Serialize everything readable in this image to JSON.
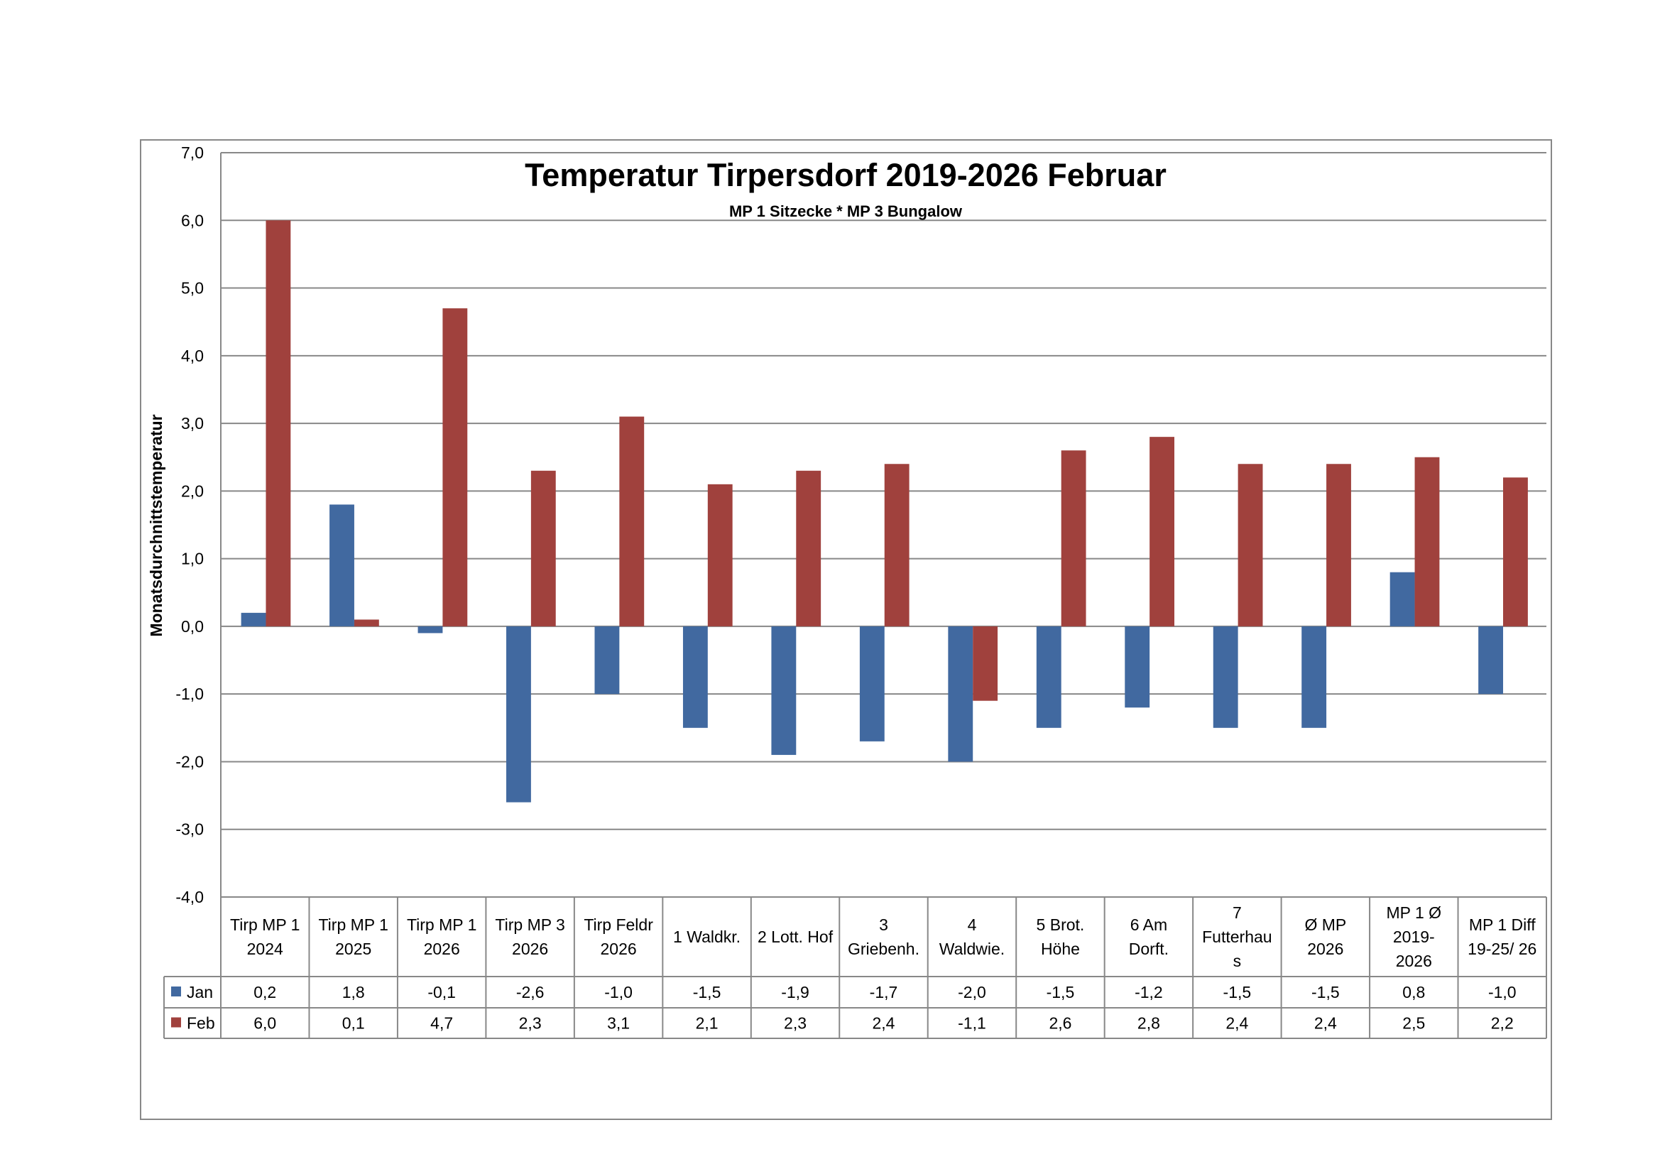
{
  "chart_data": {
    "type": "bar",
    "title": "Temperatur Tirpersdorf 2019-2026 Februar",
    "subtitle": "MP 1 Sitzecke * MP 3 Bungalow",
    "ylabel": "Monatsdurchnittstemperatur",
    "xlabel": "",
    "ylim": [
      -4,
      7
    ],
    "yticks": [
      "7,0",
      "6,0",
      "5,0",
      "4,0",
      "3,0",
      "2,0",
      "1,0",
      "0,0",
      "-1,0",
      "-2,0",
      "-3,0",
      "-4,0"
    ],
    "grid": true,
    "legend_placement": "data-table",
    "categories": [
      [
        "Tirp MP 1",
        "2024"
      ],
      [
        "Tirp MP 1",
        "2025"
      ],
      [
        "Tirp MP 1",
        "2026"
      ],
      [
        "Tirp MP 3",
        "2026"
      ],
      [
        "Tirp Feldr",
        "2026"
      ],
      [
        "1 Waldkr."
      ],
      [
        "2 Lott. Hof"
      ],
      [
        "3",
        "Griebenh."
      ],
      [
        "4",
        "Waldwie."
      ],
      [
        "5 Brot.",
        "Höhe"
      ],
      [
        "6 Am",
        "Dorft."
      ],
      [
        "7",
        "Futterhau",
        "s"
      ],
      [
        "Ø MP",
        "2026"
      ],
      [
        "MP 1 Ø",
        "2019-",
        "2026"
      ],
      [
        "MP 1 Diff",
        "19-25/ 26"
      ]
    ],
    "series": [
      {
        "name": "Jan",
        "color": "#4169A0",
        "values": [
          0.2,
          1.8,
          -0.1,
          -2.6,
          -1.0,
          -1.5,
          -1.9,
          -1.7,
          -2.0,
          -1.5,
          -1.2,
          -1.5,
          -1.5,
          0.8,
          -1.0
        ],
        "labels": [
          "0,2",
          "1,8",
          "-0,1",
          "-2,6",
          "-1,0",
          "-1,5",
          "-1,9",
          "-1,7",
          "-2,0",
          "-1,5",
          "-1,2",
          "-1,5",
          "-1,5",
          "0,8",
          "-1,0"
        ]
      },
      {
        "name": "Feb",
        "color": "#A0413D",
        "values": [
          6.0,
          0.1,
          4.7,
          2.3,
          3.1,
          2.1,
          2.3,
          2.4,
          -1.1,
          2.6,
          2.8,
          2.4,
          2.4,
          2.5,
          2.2
        ],
        "labels": [
          "6,0",
          "0,1",
          "4,7",
          "2,3",
          "3,1",
          "2,1",
          "2,3",
          "2,4",
          "-1,1",
          "2,6",
          "2,8",
          "2,4",
          "2,4",
          "2,5",
          "2,2"
        ]
      }
    ]
  }
}
